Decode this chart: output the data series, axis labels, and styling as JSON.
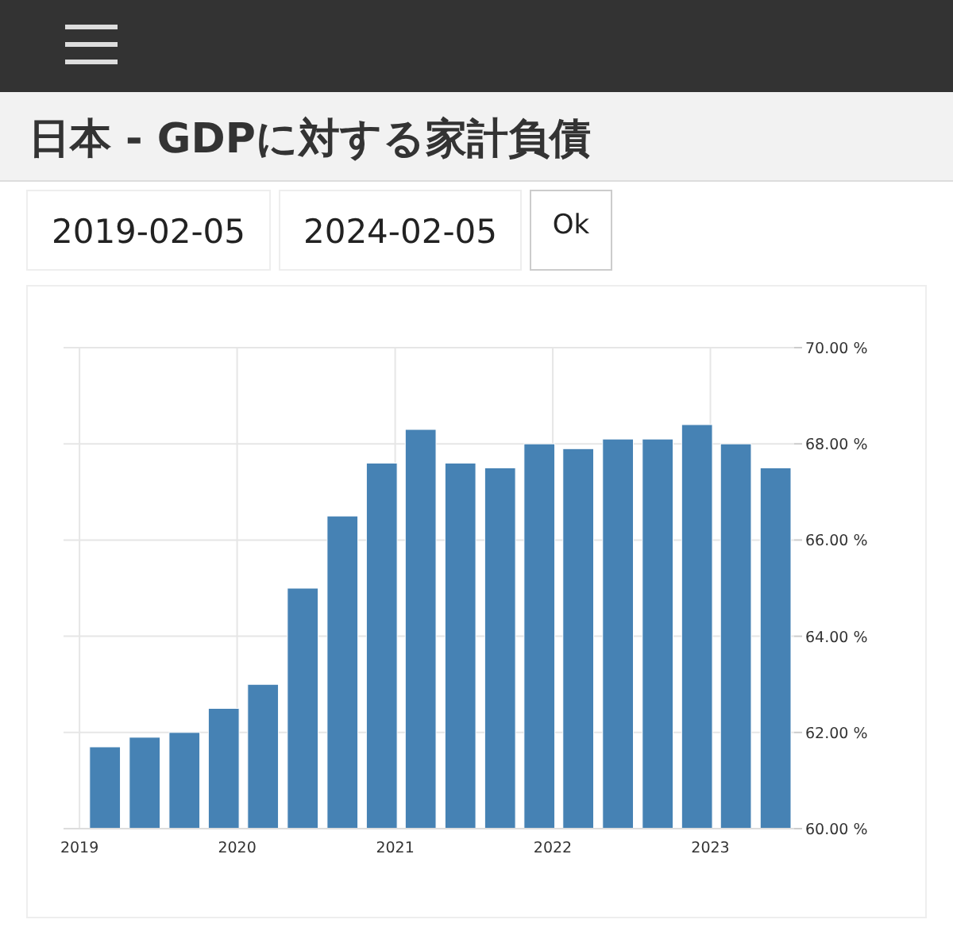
{
  "chart_data": {
    "type": "bar",
    "title": "日本 - GDPに対する家計負債",
    "annotations": [
      "2019-02-05",
      "2024-02-05",
      "Ok"
    ],
    "x": [
      "2019-03",
      "2019-06",
      "2019-09",
      "2019-12",
      "2020-03",
      "2020-06",
      "2020-09",
      "2020-12",
      "2021-03",
      "2021-06",
      "2021-09",
      "2021-12",
      "2022-03",
      "2022-06",
      "2022-09",
      "2022-12",
      "2023-03",
      "2023-06"
    ],
    "values": [
      61.7,
      61.9,
      62.0,
      62.5,
      63.0,
      65.0,
      66.5,
      67.6,
      68.3,
      67.6,
      67.5,
      68.0,
      67.9,
      68.1,
      68.1,
      68.4,
      68.0,
      67.5
    ],
    "color": "#4682b4",
    "xlim": [
      "2018-11-25",
      "2023-07-14"
    ],
    "xticks": [
      "2019",
      "2020",
      "2021",
      "2022",
      "2023"
    ],
    "ylim": [
      60,
      70
    ],
    "yticks": [
      {
        "value": 60,
        "label": "60.00 %"
      },
      {
        "value": 62,
        "label": "62.00 %"
      },
      {
        "value": 64,
        "label": "64.00 %"
      },
      {
        "value": 66,
        "label": "66.00 %"
      },
      {
        "value": 68,
        "label": "68.00 %"
      },
      {
        "value": 70,
        "label": "70.00 %"
      }
    ],
    "grid": true
  }
}
